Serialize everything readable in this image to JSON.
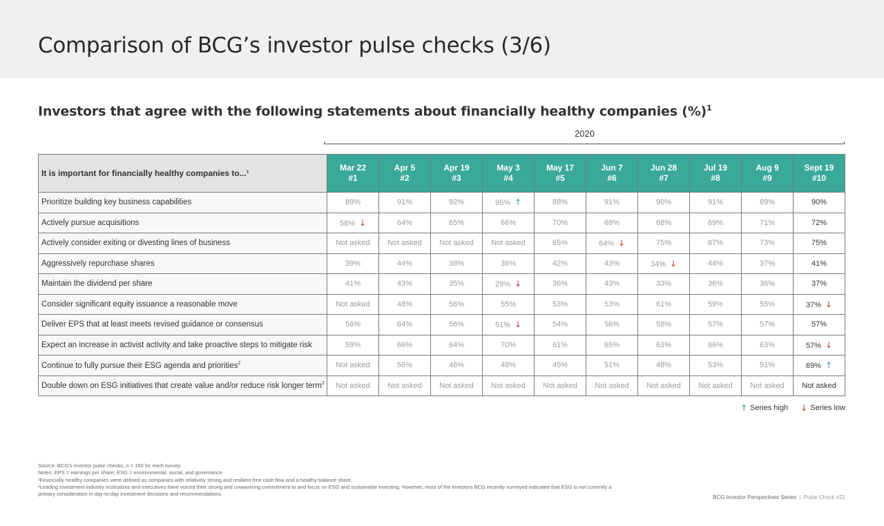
{
  "page": {
    "title": "Comparison of BCG’s investor pulse checks (3/6)",
    "subtitle": "Investors that agree with the following statements about financially healthy companies (%)",
    "subtitle_sup": "1",
    "year": "2020"
  },
  "table": {
    "statement_header": "It is important for financially healthy companies to...¹",
    "columns": [
      {
        "date": "Mar 22",
        "num": "#1"
      },
      {
        "date": "Apr 5",
        "num": "#2"
      },
      {
        "date": "Apr 19",
        "num": "#3"
      },
      {
        "date": "May 3",
        "num": "#4"
      },
      {
        "date": "May 17",
        "num": "#5"
      },
      {
        "date": "Jun 7",
        "num": "#6"
      },
      {
        "date": "Jun 28",
        "num": "#7"
      },
      {
        "date": "Jul 19",
        "num": "#8"
      },
      {
        "date": "Aug 9",
        "num": "#9"
      },
      {
        "date": "Sept 19",
        "num": "#10"
      }
    ],
    "rows": [
      {
        "label": "Prioritize building key business capabilities",
        "sup": "",
        "values": [
          "89%",
          "91%",
          "92%",
          "95%",
          "88%",
          "91%",
          "90%",
          "91%",
          "89%",
          "90%"
        ],
        "marks": [
          "",
          "",
          "",
          "up",
          "",
          "",
          "",
          "",
          "",
          ""
        ]
      },
      {
        "label": "Actively pursue acquisitions",
        "sup": "",
        "values": [
          "58%",
          "64%",
          "65%",
          "66%",
          "70%",
          "68%",
          "68%",
          "69%",
          "71%",
          "72%"
        ],
        "marks": [
          "down",
          "",
          "",
          "",
          "",
          "",
          "",
          "",
          "",
          ""
        ]
      },
      {
        "label": "Actively consider exiting or divesting lines of business",
        "sup": "",
        "values": [
          "Not asked",
          "Not asked",
          "Not asked",
          "Not asked",
          "65%",
          "64%",
          "75%",
          "67%",
          "73%",
          "75%"
        ],
        "marks": [
          "",
          "",
          "",
          "",
          "",
          "down",
          "",
          "",
          "",
          ""
        ]
      },
      {
        "label": "Aggressively repurchase shares",
        "sup": "",
        "values": [
          "39%",
          "44%",
          "38%",
          "36%",
          "42%",
          "43%",
          "34%",
          "44%",
          "37%",
          "41%"
        ],
        "marks": [
          "",
          "",
          "",
          "",
          "",
          "",
          "down",
          "",
          "",
          ""
        ]
      },
      {
        "label": "Maintain the dividend per share",
        "sup": "",
        "values": [
          "41%",
          "43%",
          "35%",
          "29%",
          "36%",
          "43%",
          "33%",
          "36%",
          "36%",
          "37%"
        ],
        "marks": [
          "",
          "",
          "",
          "down",
          "",
          "",
          "",
          "",
          "",
          ""
        ]
      },
      {
        "label": "Consider significant equity issuance a reasonable move",
        "sup": "",
        "values": [
          "Not asked",
          "48%",
          "56%",
          "55%",
          "53%",
          "53%",
          "61%",
          "59%",
          "55%",
          "37%"
        ],
        "marks": [
          "",
          "",
          "",
          "",
          "",
          "",
          "",
          "",
          "",
          "down"
        ]
      },
      {
        "label": "Deliver EPS that at least meets revised guidance or consensus",
        "sup": "",
        "values": [
          "56%",
          "64%",
          "56%",
          "51%",
          "54%",
          "56%",
          "58%",
          "57%",
          "57%",
          "57%"
        ],
        "marks": [
          "",
          "",
          "",
          "down",
          "",
          "",
          "",
          "",
          "",
          ""
        ]
      },
      {
        "label": "Expect an increase in activist activity and take proactive steps to mitigate risk",
        "sup": "",
        "values": [
          "59%",
          "66%",
          "64%",
          "70%",
          "61%",
          "65%",
          "63%",
          "66%",
          "63%",
          "57%"
        ],
        "marks": [
          "",
          "",
          "",
          "",
          "",
          "",
          "",
          "",
          "",
          "down"
        ]
      },
      {
        "label": "Continue to fully pursue their ESG agenda and priorities",
        "sup": "2",
        "values": [
          "Not asked",
          "56%",
          "46%",
          "48%",
          "45%",
          "51%",
          "48%",
          "53%",
          "51%",
          "69%"
        ],
        "marks": [
          "",
          "",
          "",
          "",
          "",
          "",
          "",
          "",
          "",
          "up"
        ]
      },
      {
        "label": "Double down on ESG initiatives that create value and/or reduce risk longer term",
        "sup": "2",
        "values": [
          "Not asked",
          "Not asked",
          "Not asked",
          "Not asked",
          "Not asked",
          "Not asked",
          "Not asked",
          "Not asked",
          "Not asked",
          "Not asked"
        ],
        "marks": [
          "",
          "",
          "",
          "",
          "",
          "",
          "",
          "",
          "",
          ""
        ]
      }
    ]
  },
  "legend": {
    "high_label": "Series high",
    "low_label": "Series low",
    "high_icon": "arrow-up-icon",
    "low_icon": "arrow-down-icon",
    "high_color": "#2a9d8f",
    "low_color": "#c0392b"
  },
  "notes": [
    "Source: BCG’s investor pulse checks; n = 150 for each survey.",
    "Notes: EPS = earnings per share; ESG = environmental, social, and governance.",
    "¹Financially healthy companies were defined as companies with relatively strong and resilient free cash flow and a healthy balance sheet.",
    "²Leading investment industry institutions and executives have voiced their strong and unwavering commitment to and focus on ESG and sustainable investing. However, most of the investors BCG recently surveyed indicated that ESG is not currently a primary consideration in day-to-day investment decisions and recommendations."
  ],
  "footer": {
    "series": "BCG Investor Perspectives Series",
    "separator": "|",
    "pulse_check": "Pulse Check #21"
  },
  "colors": {
    "header_teal": "#3aa99a",
    "header_band": "#f0f0f0"
  }
}
